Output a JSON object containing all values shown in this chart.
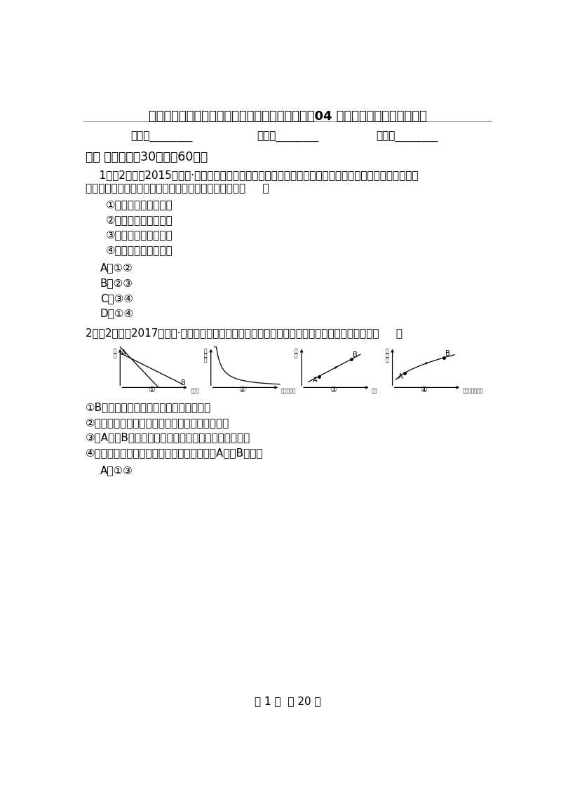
{
  "title": "湖北省恩施土家族苗族自治州高考政治一轮复习：04 价格变动对经济生活的影响",
  "background_color": "#ffffff",
  "text_color": "#000000",
  "fields_label1": "姓名：________",
  "fields_label2": "班级：________",
  "fields_label3": "成绩：________",
  "section1_title": "一、 单选题（共30题；共60分）",
  "q1_line1": "    1．（2分）（2015高一上·清流期中）假定甲商品和乙商品是互补品，甲商品和丙商品是替代品。如果市场",
  "q1_line2": "上甲商品的价格大幅度下降，那么，在其他条件不变时（     ）",
  "q1_options": [
    "①乙商品的需求量减少",
    "②乙商品的需求量增加",
    "③丙商品的需求量减少",
    "④丙商品的需求量增加"
  ],
  "q1_choices": [
    "A．①②",
    "B．②③",
    "C．③④",
    "D．①④"
  ],
  "q2_line1": "2．（2分）（2017高一上·台山期中）假定其他条件不变，下列表述与其对应图标信息相符的是（     ）",
  "q2_options": [
    "①B商品需求弹性大，对价格变动的反应小",
    "②曲线反映了个别劳动生产率对商品价值量的影响",
    "③从A点到B点的变化反映了商品价格对商品供给的影响",
    "④社会劳动生产率提高，则该商品需求量会由A点向B点移动"
  ],
  "q2_choices": [
    "A．①③"
  ],
  "page_footer": "第 1 页  共 20 页",
  "graph1_ylabel": [
    "价",
    "格"
  ],
  "graph1_xlabel": "需求量",
  "graph2_ylabel": [
    "价",
    "值",
    "量"
  ],
  "graph2_xlabel": "劳动生产率",
  "graph3_ylabel": [
    "价",
    "格"
  ],
  "graph3_xlabel": "数量",
  "graph4_ylabel": [
    "需",
    "求",
    "量"
  ],
  "graph4_xlabel": "社会劳动生产率",
  "graph_numbers": [
    "①",
    "②",
    "③",
    "④"
  ]
}
